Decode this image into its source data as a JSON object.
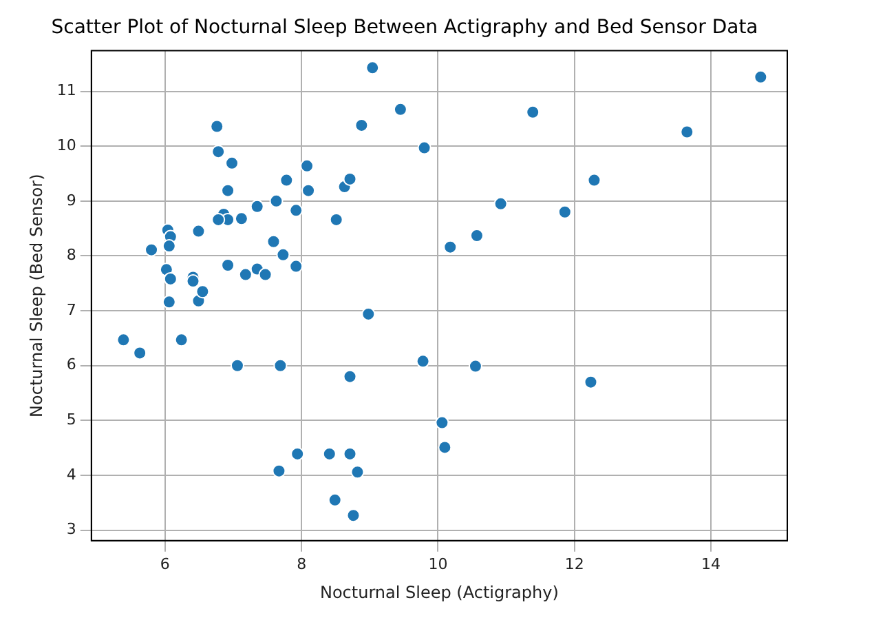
{
  "chart_data": {
    "type": "scatter",
    "title": "Scatter Plot of Nocturnal Sleep Between Actigraphy and Bed Sensor Data",
    "xlabel": "Nocturnal Sleep (Actigraphy)",
    "ylabel": "Nocturnal Sleep (Bed Sensor)",
    "x": [
      5.39,
      5.63,
      5.8,
      6.04,
      6.08,
      6.06,
      6.02,
      6.08,
      6.06,
      6.24,
      6.41,
      6.41,
      6.49,
      6.49,
      6.55,
      6.76,
      6.78,
      6.98,
      6.92,
      6.86,
      6.92,
      6.78,
      6.92,
      7.06,
      7.12,
      7.18,
      7.35,
      7.35,
      7.47,
      7.59,
      7.63,
      7.67,
      7.69,
      7.73,
      7.78,
      7.92,
      7.92,
      7.94,
      8.1,
      8.08,
      8.41,
      8.51,
      8.49,
      8.63,
      8.71,
      8.71,
      8.71,
      8.76,
      8.82,
      8.88,
      8.98,
      9.04,
      9.45,
      9.8,
      9.78,
      10.06,
      10.1,
      10.18,
      10.57,
      10.55,
      10.92,
      11.39,
      11.86,
      12.29,
      12.24,
      13.65,
      14.73
    ],
    "values": [
      6.47,
      6.23,
      8.11,
      8.47,
      8.35,
      8.18,
      7.75,
      7.58,
      7.16,
      6.47,
      7.61,
      7.54,
      8.45,
      7.18,
      7.35,
      10.36,
      9.9,
      9.69,
      9.19,
      8.76,
      8.66,
      8.66,
      7.83,
      6.0,
      8.68,
      7.66,
      8.9,
      7.76,
      7.66,
      8.26,
      9.0,
      4.08,
      6.0,
      8.02,
      9.38,
      8.83,
      7.81,
      4.39,
      9.19,
      9.64,
      4.39,
      8.66,
      3.55,
      9.26,
      9.4,
      5.8,
      4.39,
      3.27,
      4.06,
      10.38,
      6.94,
      11.43,
      10.67,
      9.97,
      6.08,
      4.96,
      4.51,
      8.16,
      8.37,
      5.99,
      8.95,
      10.62,
      8.8,
      9.38,
      5.7,
      10.26,
      11.26
    ],
    "color": "#1f77b4",
    "marker": "circle",
    "grid": true,
    "xlim": [
      4.92,
      15.12
    ],
    "xticks": [
      6,
      8,
      10,
      12,
      14
    ],
    "ylim": [
      2.81,
      11.74
    ],
    "yticks": [
      3,
      4,
      5,
      6,
      7,
      8,
      9,
      10,
      11
    ]
  }
}
